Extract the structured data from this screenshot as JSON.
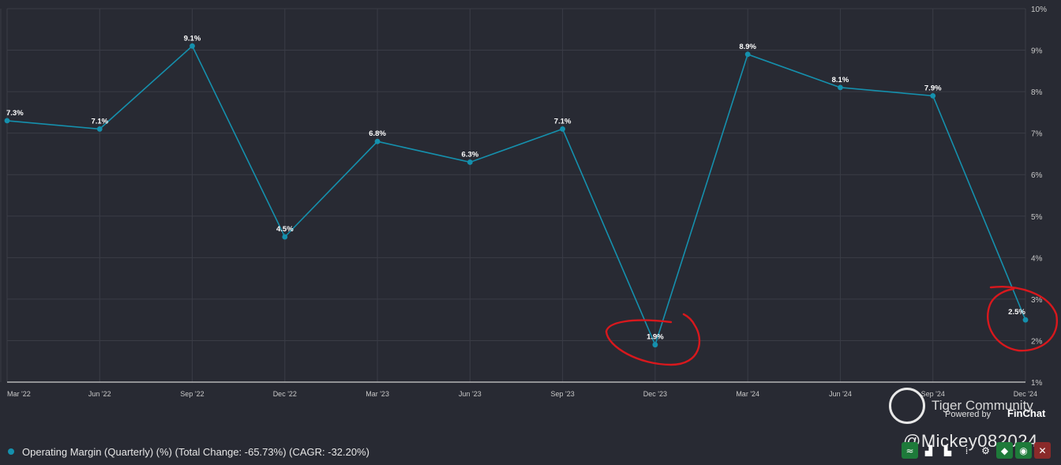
{
  "chart_data": {
    "type": "line",
    "x": [
      "Mar '22",
      "Jun '22",
      "Sep '22",
      "Dec '22",
      "Mar '23",
      "Jun '23",
      "Sep '23",
      "Dec '23",
      "Mar '24",
      "Jun '24",
      "Sep '24",
      "Dec '24"
    ],
    "series": [
      {
        "name": "Operating Margin (Quarterly) (%)",
        "values": [
          7.3,
          7.1,
          9.1,
          4.5,
          6.8,
          6.3,
          7.1,
          1.9,
          8.9,
          8.1,
          7.9,
          2.5
        ],
        "labels": [
          "7.3%",
          "7.1%",
          "9.1%",
          "4.5%",
          "6.8%",
          "6.3%",
          "7.1%",
          "1.9%",
          "8.9%",
          "8.1%",
          "7.9%",
          "2.5%"
        ],
        "color": "#1590ad"
      }
    ],
    "y_ticks": [
      "10%",
      "9%",
      "8%",
      "7%",
      "6%",
      "5%",
      "4%",
      "3%",
      "2%",
      "1%"
    ],
    "ylim": [
      1,
      10
    ],
    "y_axis_side": "right",
    "grid": true,
    "legend_position": "bottom-left",
    "annotations": [
      "red circle around Dec '23 (1.9%)",
      "red circle around Dec '24 (2.5%)"
    ],
    "annotation_color": "#d8181d"
  },
  "legend": {
    "text": "Operating Margin (Quarterly) (%) (Total Change: -65.73%) (CAGR: -32.20%)",
    "color": "#1590ad"
  },
  "watermark": {
    "title": "Tiger Community",
    "powered_by": "Powered by",
    "brand": "FinChat",
    "handle": "@Mickey082024"
  },
  "toolbar": {
    "buttons": [
      {
        "icon": "line-chart-icon",
        "glyph": "≈",
        "color": "#1e7a3a"
      },
      {
        "icon": "bar-chart-icon",
        "glyph": "▟",
        "color": ""
      },
      {
        "icon": "column-chart-icon",
        "glyph": "▙",
        "color": ""
      },
      {
        "icon": "more-icon",
        "glyph": "⁞",
        "color": ""
      },
      {
        "icon": "settings-icon",
        "glyph": "⚙",
        "color": ""
      },
      {
        "icon": "tag-icon",
        "glyph": "◆",
        "color": "#1e7a3a"
      },
      {
        "icon": "eye-icon",
        "glyph": "◉",
        "color": "#1e7a3a"
      },
      {
        "icon": "close-icon",
        "glyph": "✕",
        "color": "#8a2a2a"
      }
    ]
  }
}
